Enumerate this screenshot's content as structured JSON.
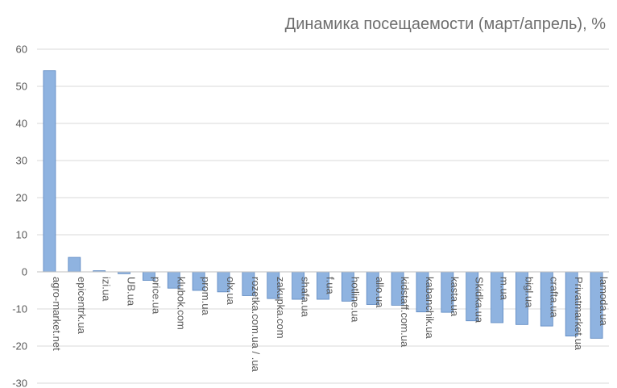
{
  "chart_data": {
    "type": "bar",
    "title": "Динамика посещаемости (март/апрель), %",
    "xlabel": "",
    "ylabel": "",
    "ylim": [
      -30,
      60
    ],
    "yticks": [
      60,
      50,
      40,
      30,
      20,
      10,
      0,
      -10,
      -20,
      -30
    ],
    "grid": true,
    "bar_color": "#8fb3e0",
    "categories": [
      "agro-market.net",
      "epicentrk.ua",
      "izi.ua",
      "UB.ua",
      "price.ua",
      "klubok.com",
      "prom.ua",
      "olx.ua",
      "rozetka.com.ua / .ua",
      "zakupka.com",
      "shafa.ua",
      "f.ua",
      "hotline.ua",
      "allo.ua",
      "kidstaff.com.ua",
      "kabanchik.ua",
      "kasta.ua",
      "Skidka.ua",
      "m.ua",
      "bigl.ua",
      "crafta.ua",
      "Privatmarket.ua",
      "lamoda.ua"
    ],
    "values": [
      54.2,
      3.9,
      0.3,
      -0.5,
      -2.3,
      -4.4,
      -5.0,
      -5.4,
      -6.4,
      -7.2,
      -7.4,
      -7.4,
      -7.9,
      -8.8,
      -9.0,
      -10.8,
      -10.9,
      -13.2,
      -13.7,
      -14.2,
      -14.6,
      -17.3,
      -17.9
    ]
  }
}
